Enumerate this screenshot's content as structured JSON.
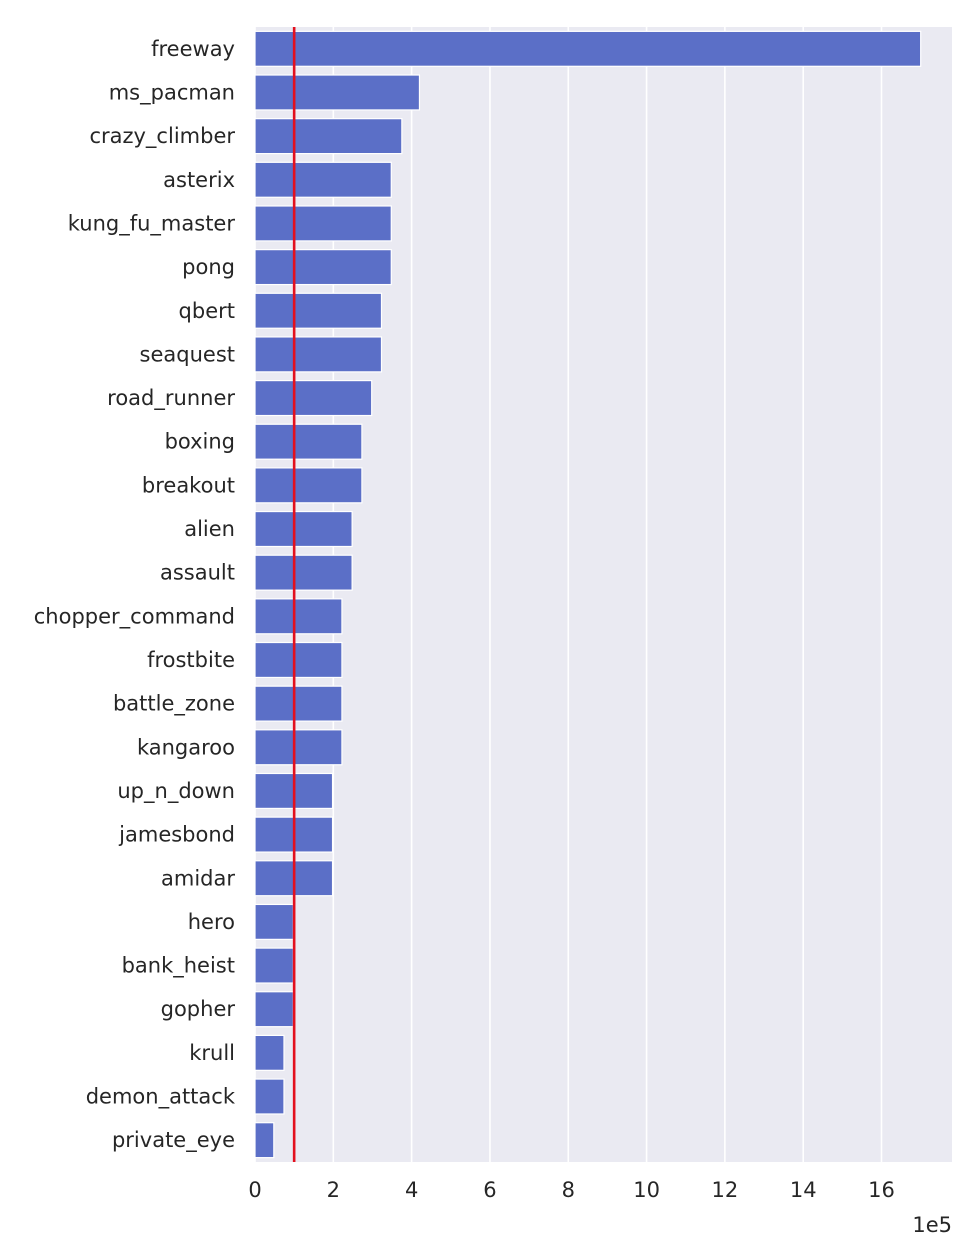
{
  "chart_data": {
    "type": "bar",
    "orientation": "horizontal",
    "categories": [
      "freeway",
      "ms_pacman",
      "crazy_climber",
      "asterix",
      "kung_fu_master",
      "pong",
      "qbert",
      "seaquest",
      "road_runner",
      "boxing",
      "breakout",
      "alien",
      "assault",
      "chopper_command",
      "frostbite",
      "battle_zone",
      "kangaroo",
      "up_n_down",
      "jamesbond",
      "amidar",
      "hero",
      "bank_heist",
      "gopher",
      "krull",
      "demon_attack",
      "private_eye"
    ],
    "values": [
      1700000,
      420000,
      375000,
      348000,
      348000,
      348000,
      323000,
      323000,
      298000,
      273000,
      273000,
      248000,
      248000,
      222000,
      222000,
      222000,
      222000,
      198000,
      198000,
      198000,
      98000,
      98000,
      98000,
      74000,
      74000,
      48000
    ],
    "xlim": [
      0,
      1780000
    ],
    "xticks": [
      0,
      2,
      4,
      6,
      8,
      10,
      12,
      14,
      16
    ],
    "x_offset_label": "1e5",
    "reference_line": 100000,
    "grid": true,
    "colors": {
      "bar": "#5b6fc7",
      "background": "#eaeaf2",
      "grid": "#ffffff",
      "reference_line": "#e3101e"
    }
  }
}
